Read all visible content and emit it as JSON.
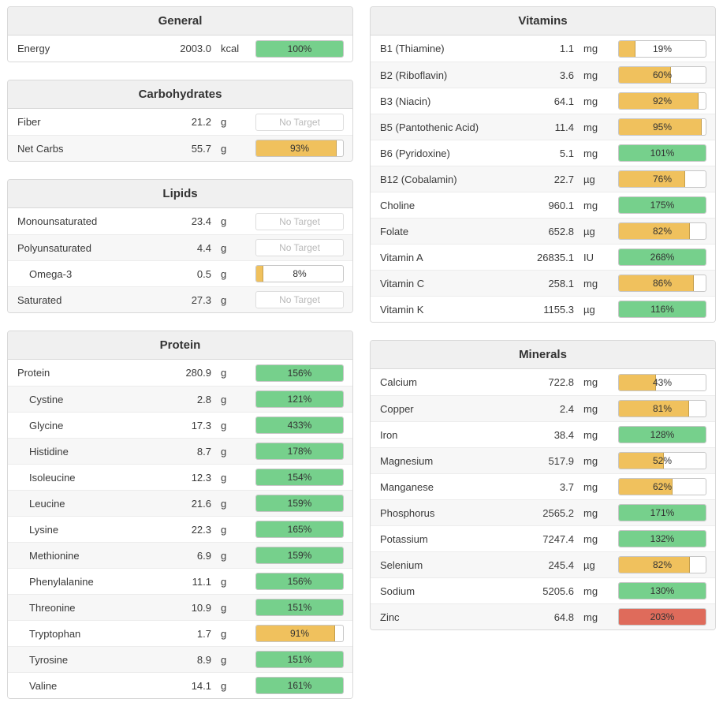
{
  "colors": {
    "green": "#76d08c",
    "yellow": "#f0c15d",
    "red": "#df6b5b"
  },
  "no_target_label": "No Target",
  "columns": [
    {
      "side": "left",
      "panels": [
        {
          "title": "General",
          "rows": [
            {
              "name": "Energy",
              "value": "2003.0",
              "unit": "kcal",
              "percent": 100,
              "label": "100%",
              "color": "green"
            }
          ]
        },
        {
          "title": "Carbohydrates",
          "rows": [
            {
              "name": "Fiber",
              "value": "21.2",
              "unit": "g",
              "no_target": true
            },
            {
              "name": "Net Carbs",
              "value": "55.7",
              "unit": "g",
              "percent": 93,
              "label": "93%",
              "color": "yellow"
            }
          ]
        },
        {
          "title": "Lipids",
          "rows": [
            {
              "name": "Monounsaturated",
              "value": "23.4",
              "unit": "g",
              "no_target": true
            },
            {
              "name": "Polyunsaturated",
              "value": "4.4",
              "unit": "g",
              "no_target": true
            },
            {
              "name": "Omega-3",
              "value": "0.5",
              "unit": "g",
              "percent": 8,
              "label": "8%",
              "color": "yellow",
              "indent": true
            },
            {
              "name": "Saturated",
              "value": "27.3",
              "unit": "g",
              "no_target": true
            }
          ]
        },
        {
          "title": "Protein",
          "rows": [
            {
              "name": "Protein",
              "value": "280.9",
              "unit": "g",
              "percent": 156,
              "label": "156%",
              "color": "green"
            },
            {
              "name": "Cystine",
              "value": "2.8",
              "unit": "g",
              "percent": 121,
              "label": "121%",
              "color": "green",
              "indent": true
            },
            {
              "name": "Glycine",
              "value": "17.3",
              "unit": "g",
              "percent": 433,
              "label": "433%",
              "color": "green",
              "indent": true
            },
            {
              "name": "Histidine",
              "value": "8.7",
              "unit": "g",
              "percent": 178,
              "label": "178%",
              "color": "green",
              "indent": true
            },
            {
              "name": "Isoleucine",
              "value": "12.3",
              "unit": "g",
              "percent": 154,
              "label": "154%",
              "color": "green",
              "indent": true
            },
            {
              "name": "Leucine",
              "value": "21.6",
              "unit": "g",
              "percent": 159,
              "label": "159%",
              "color": "green",
              "indent": true
            },
            {
              "name": "Lysine",
              "value": "22.3",
              "unit": "g",
              "percent": 165,
              "label": "165%",
              "color": "green",
              "indent": true
            },
            {
              "name": "Methionine",
              "value": "6.9",
              "unit": "g",
              "percent": 159,
              "label": "159%",
              "color": "green",
              "indent": true
            },
            {
              "name": "Phenylalanine",
              "value": "11.1",
              "unit": "g",
              "percent": 156,
              "label": "156%",
              "color": "green",
              "indent": true
            },
            {
              "name": "Threonine",
              "value": "10.9",
              "unit": "g",
              "percent": 151,
              "label": "151%",
              "color": "green",
              "indent": true
            },
            {
              "name": "Tryptophan",
              "value": "1.7",
              "unit": "g",
              "percent": 91,
              "label": "91%",
              "color": "yellow",
              "indent": true
            },
            {
              "name": "Tyrosine",
              "value": "8.9",
              "unit": "g",
              "percent": 151,
              "label": "151%",
              "color": "green",
              "indent": true
            },
            {
              "name": "Valine",
              "value": "14.1",
              "unit": "g",
              "percent": 161,
              "label": "161%",
              "color": "green",
              "indent": true
            }
          ]
        }
      ]
    },
    {
      "side": "right",
      "panels": [
        {
          "title": "Vitamins",
          "rows": [
            {
              "name": "B1 (Thiamine)",
              "value": "1.1",
              "unit": "mg",
              "percent": 19,
              "label": "19%",
              "color": "yellow"
            },
            {
              "name": "B2 (Riboflavin)",
              "value": "3.6",
              "unit": "mg",
              "percent": 60,
              "label": "60%",
              "color": "yellow"
            },
            {
              "name": "B3 (Niacin)",
              "value": "64.1",
              "unit": "mg",
              "percent": 92,
              "label": "92%",
              "color": "yellow"
            },
            {
              "name": "B5 (Pantothenic Acid)",
              "value": "11.4",
              "unit": "mg",
              "percent": 95,
              "label": "95%",
              "color": "yellow"
            },
            {
              "name": "B6 (Pyridoxine)",
              "value": "5.1",
              "unit": "mg",
              "percent": 101,
              "label": "101%",
              "color": "green"
            },
            {
              "name": "B12 (Cobalamin)",
              "value": "22.7",
              "unit": "µg",
              "percent": 76,
              "label": "76%",
              "color": "yellow"
            },
            {
              "name": "Choline",
              "value": "960.1",
              "unit": "mg",
              "percent": 175,
              "label": "175%",
              "color": "green"
            },
            {
              "name": "Folate",
              "value": "652.8",
              "unit": "µg",
              "percent": 82,
              "label": "82%",
              "color": "yellow"
            },
            {
              "name": "Vitamin A",
              "value": "26835.1",
              "unit": "IU",
              "percent": 268,
              "label": "268%",
              "color": "green"
            },
            {
              "name": "Vitamin C",
              "value": "258.1",
              "unit": "mg",
              "percent": 86,
              "label": "86%",
              "color": "yellow"
            },
            {
              "name": "Vitamin K",
              "value": "1155.3",
              "unit": "µg",
              "percent": 116,
              "label": "116%",
              "color": "green"
            }
          ]
        },
        {
          "title": "Minerals",
          "rows": [
            {
              "name": "Calcium",
              "value": "722.8",
              "unit": "mg",
              "percent": 43,
              "label": "43%",
              "color": "yellow"
            },
            {
              "name": "Copper",
              "value": "2.4",
              "unit": "mg",
              "percent": 81,
              "label": "81%",
              "color": "yellow"
            },
            {
              "name": "Iron",
              "value": "38.4",
              "unit": "mg",
              "percent": 128,
              "label": "128%",
              "color": "green"
            },
            {
              "name": "Magnesium",
              "value": "517.9",
              "unit": "mg",
              "percent": 52,
              "label": "52%",
              "color": "yellow"
            },
            {
              "name": "Manganese",
              "value": "3.7",
              "unit": "mg",
              "percent": 62,
              "label": "62%",
              "color": "yellow"
            },
            {
              "name": "Phosphorus",
              "value": "2565.2",
              "unit": "mg",
              "percent": 171,
              "label": "171%",
              "color": "green"
            },
            {
              "name": "Potassium",
              "value": "7247.4",
              "unit": "mg",
              "percent": 132,
              "label": "132%",
              "color": "green"
            },
            {
              "name": "Selenium",
              "value": "245.4",
              "unit": "µg",
              "percent": 82,
              "label": "82%",
              "color": "yellow"
            },
            {
              "name": "Sodium",
              "value": "5205.6",
              "unit": "mg",
              "percent": 130,
              "label": "130%",
              "color": "green"
            },
            {
              "name": "Zinc",
              "value": "64.8",
              "unit": "mg",
              "percent": 203,
              "label": "203%",
              "color": "red"
            }
          ]
        }
      ]
    }
  ]
}
